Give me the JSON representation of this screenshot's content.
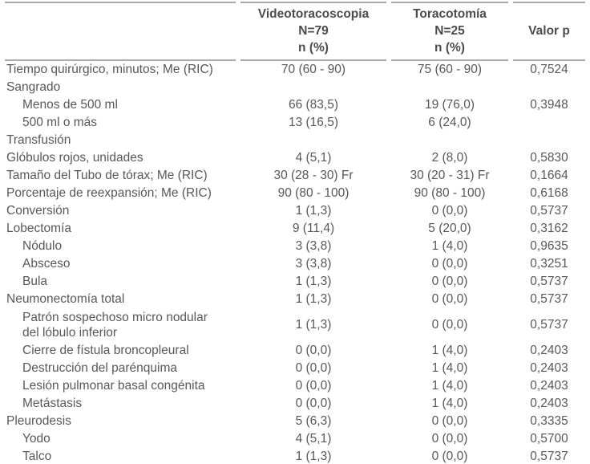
{
  "table": {
    "header": {
      "label_col": "",
      "videotoracoscopia": [
        "Videotoracoscopia",
        "N=79",
        "n (%)"
      ],
      "toracotomia": [
        "Toracotomía",
        "N=25",
        "n (%)"
      ],
      "valor_p": "Valor p"
    },
    "rows": [
      {
        "label": "Tiempo quirúrgico, minutos; Me (RIC)",
        "indent": 0,
        "vtc": "70 (60 - 90)",
        "tor": "75 (60 - 90)",
        "p": "0,7524"
      },
      {
        "label": "Sangrado",
        "indent": 0,
        "vtc": "",
        "tor": "",
        "p": ""
      },
      {
        "label": "Menos de 500 ml",
        "indent": 1,
        "vtc": "66 (83,5)",
        "tor": "19 (76,0)",
        "p": "0,3948"
      },
      {
        "label": "500 ml o más",
        "indent": 1,
        "vtc": "13 (16,5)",
        "tor": "6 (24,0)",
        "p": ""
      },
      {
        "label": "Transfusión",
        "indent": 0,
        "vtc": "",
        "tor": "",
        "p": ""
      },
      {
        "label": "Glóbulos rojos, unidades",
        "indent": 0,
        "vtc": "4 (5,1)",
        "tor": "2 (8,0)",
        "p": "0,5830"
      },
      {
        "label": "Tamaño del Tubo de tórax; Me (RIC)",
        "indent": 0,
        "vtc": "30 (28 - 30) Fr",
        "tor": "30 (20 - 31) Fr",
        "p": "0,1664"
      },
      {
        "label": "Porcentaje de reexpansión; Me (RIC)",
        "indent": 0,
        "vtc": "90 (80 - 100)",
        "tor": "90 (80 - 100)",
        "p": "0,6168"
      },
      {
        "label": "Conversión",
        "indent": 0,
        "vtc": "1 (1,3)",
        "tor": "0 (0,0)",
        "p": "0,5737"
      },
      {
        "label": "Lobectomía",
        "indent": 0,
        "vtc": "9 (11,4)",
        "tor": "5 (20,0)",
        "p": "0,3162"
      },
      {
        "label": "Nódulo",
        "indent": 1,
        "vtc": "3 (3,8)",
        "tor": "1 (4,0)",
        "p": "0,9635"
      },
      {
        "label": "Absceso",
        "indent": 1,
        "vtc": "3 (3,8)",
        "tor": "0 (0,0)",
        "p": "0,3251"
      },
      {
        "label": "Bula",
        "indent": 1,
        "vtc": "1 (1,3)",
        "tor": "0 (0,0)",
        "p": "0,5737"
      },
      {
        "label": "Neumonectomía total",
        "indent": 0,
        "vtc": "1 (1,3)",
        "tor": "0 (0,0)",
        "p": "0,5737"
      },
      {
        "label": "Patrón sospechoso micro nodular\ndel lóbulo inferior",
        "indent": 1,
        "tall": 1,
        "vtc": "1 (1,3)",
        "tor": "0 (0,0)",
        "p": "0,5737"
      },
      {
        "label": "Cierre de fístula broncopleural",
        "indent": 1,
        "vtc": "0 (0,0)",
        "tor": "1 (4,0)",
        "p": "0,2403"
      },
      {
        "label": "Destrucción del parénquima",
        "indent": 1,
        "vtc": "0 (0,0)",
        "tor": "1 (4,0)",
        "p": "0,2403"
      },
      {
        "label": "Lesión pulmonar basal congénita",
        "indent": 1,
        "vtc": "0 (0,0)",
        "tor": "1 (4,0)",
        "p": "0,2403"
      },
      {
        "label": "Metástasis",
        "indent": 1,
        "vtc": "0 (0,0)",
        "tor": "1 (4,0)",
        "p": "0,2403"
      },
      {
        "label": "Pleurodesis",
        "indent": 0,
        "vtc": "5 (6,3)",
        "tor": "0 (0,0)",
        "p": "0,3335"
      },
      {
        "label": "Yodo",
        "indent": 1,
        "vtc": "4 (5,1)",
        "tor": "0 (0,0)",
        "p": "0,5700"
      },
      {
        "label": "Talco",
        "indent": 1,
        "vtc": "1 (1,3)",
        "tor": "0 (0,0)",
        "p": "0,5737"
      }
    ],
    "colors": {
      "text": "#58585a",
      "header_text": "#4c4c4e",
      "rule_top": "#a9a9ab",
      "rule_bottom": "#88888b",
      "background": "#ffffff"
    }
  }
}
